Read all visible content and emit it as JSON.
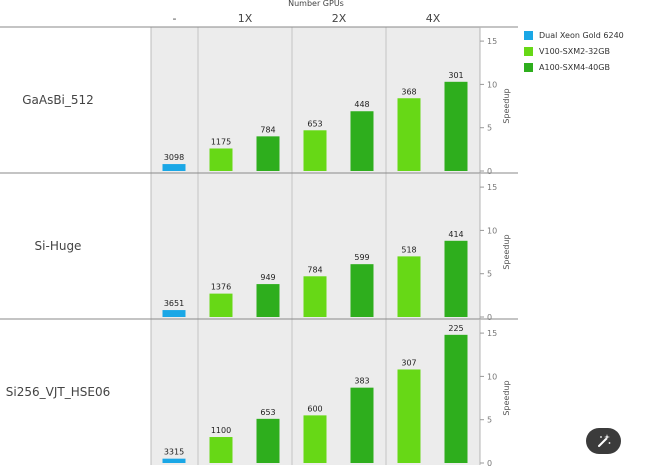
{
  "chart_data": {
    "type": "bar",
    "title": "Number GPUs",
    "column_labels": [
      "-",
      "1X",
      "2X",
      "4X"
    ],
    "legend": [
      {
        "name": "Dual Xeon Gold 6240",
        "color": "#1aa7e6"
      },
      {
        "name": "V100-SXM2-32GB",
        "color": "#67d816"
      },
      {
        "name": "A100-SXM4-40GB",
        "color": "#2eae1d"
      }
    ],
    "y_axis_label": "Speedup",
    "panels": [
      {
        "name": "GaAsBi_512",
        "ylim": [
          0,
          15
        ],
        "ticks": [
          "0",
          "5",
          "10",
          "15"
        ],
        "bars": [
          {
            "series": "Dual Xeon Gold 6240",
            "gpus": "-",
            "speedup": 0.8,
            "label": "3098"
          },
          {
            "series": "V100-SXM2-32GB",
            "gpus": "1X",
            "speedup": 2.6,
            "label": "1175"
          },
          {
            "series": "A100-SXM4-40GB",
            "gpus": "1X",
            "speedup": 4.0,
            "label": "784"
          },
          {
            "series": "V100-SXM2-32GB",
            "gpus": "2X",
            "speedup": 4.7,
            "label": "653"
          },
          {
            "series": "A100-SXM4-40GB",
            "gpus": "2X",
            "speedup": 6.9,
            "label": "448"
          },
          {
            "series": "V100-SXM2-32GB",
            "gpus": "4X",
            "speedup": 8.4,
            "label": "368"
          },
          {
            "series": "A100-SXM4-40GB",
            "gpus": "4X",
            "speedup": 10.3,
            "label": "301"
          }
        ]
      },
      {
        "name": "Si-Huge",
        "ylim": [
          0,
          15
        ],
        "ticks": [
          "0",
          "5",
          "10",
          "15"
        ],
        "bars": [
          {
            "series": "Dual Xeon Gold 6240",
            "gpus": "-",
            "speedup": 0.8,
            "label": "3651"
          },
          {
            "series": "V100-SXM2-32GB",
            "gpus": "1X",
            "speedup": 2.7,
            "label": "1376"
          },
          {
            "series": "A100-SXM4-40GB",
            "gpus": "1X",
            "speedup": 3.8,
            "label": "949"
          },
          {
            "series": "V100-SXM2-32GB",
            "gpus": "2X",
            "speedup": 4.7,
            "label": "784"
          },
          {
            "series": "A100-SXM4-40GB",
            "gpus": "2X",
            "speedup": 6.1,
            "label": "599"
          },
          {
            "series": "V100-SXM2-32GB",
            "gpus": "4X",
            "speedup": 7.0,
            "label": "518"
          },
          {
            "series": "A100-SXM4-40GB",
            "gpus": "4X",
            "speedup": 8.8,
            "label": "414"
          }
        ]
      },
      {
        "name": "Si256_VJT_HSE06",
        "ylim": [
          0,
          15
        ],
        "ticks": [
          "0",
          "5",
          "10",
          "15"
        ],
        "bars": [
          {
            "series": "Dual Xeon Gold 6240",
            "gpus": "-",
            "speedup": 0.5,
            "label": "3315"
          },
          {
            "series": "V100-SXM2-32GB",
            "gpus": "1X",
            "speedup": 3.0,
            "label": "1100"
          },
          {
            "series": "A100-SXM4-40GB",
            "gpus": "1X",
            "speedup": 5.1,
            "label": "653"
          },
          {
            "series": "V100-SXM2-32GB",
            "gpus": "2X",
            "speedup": 5.5,
            "label": "600"
          },
          {
            "series": "A100-SXM4-40GB",
            "gpus": "2X",
            "speedup": 8.7,
            "label": "383"
          },
          {
            "series": "V100-SXM2-32GB",
            "gpus": "4X",
            "speedup": 10.8,
            "label": "307"
          },
          {
            "series": "A100-SXM4-40GB",
            "gpus": "4X",
            "speedup": 14.8,
            "label": "225"
          }
        ]
      }
    ]
  },
  "fab_icon": "magic-wand-icon"
}
